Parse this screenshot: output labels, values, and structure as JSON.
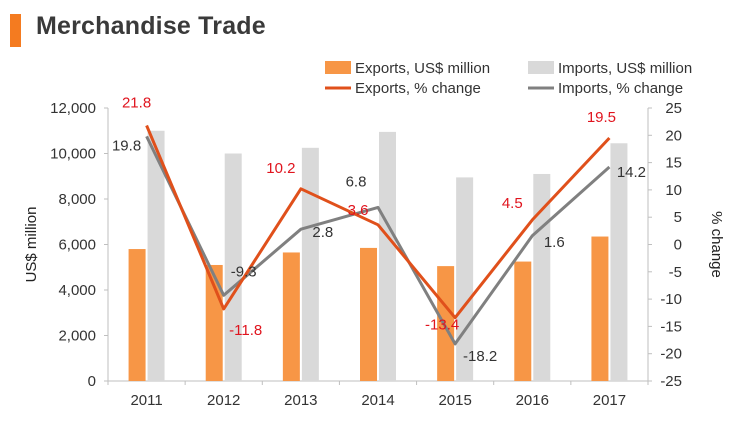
{
  "title": "Merchandise Trade",
  "colors": {
    "accent": "#f47b20",
    "exports_bar": "#f79646",
    "imports_bar": "#d9d9d9",
    "exports_line": "#e0501b",
    "imports_line": "#808080",
    "exports_label": "#e0141e",
    "imports_label": "#333333",
    "axis": "#bfbfbf"
  },
  "chart_data": {
    "type": "bar+line",
    "title": "Merchandise Trade",
    "categories": [
      "2011",
      "2012",
      "2013",
      "2014",
      "2015",
      "2016",
      "2017"
    ],
    "ylabel": "US$ million",
    "y2label": "% change",
    "ylim": [
      0,
      12000
    ],
    "yticks": [
      0,
      2000,
      4000,
      6000,
      8000,
      10000,
      12000
    ],
    "ytick_labels": [
      "0",
      "2,000",
      "4,000",
      "6,000",
      "8,000",
      "10,000",
      "12,000"
    ],
    "y2lim": [
      -25,
      25
    ],
    "y2ticks": [
      25,
      20,
      15,
      10,
      5,
      0,
      -5,
      -10,
      -15,
      -20,
      -25
    ],
    "y2tick_labels": [
      "25",
      "20",
      "15",
      "10",
      "5",
      "0",
      "-5",
      "-10",
      "-15",
      "-20",
      "-25"
    ],
    "bar_series": [
      {
        "name": "Exports, US$ million",
        "values": [
          5800,
          5100,
          5650,
          5850,
          5050,
          5250,
          6350
        ]
      },
      {
        "name": "Imports, US$ million",
        "values": [
          11000,
          10000,
          10250,
          10950,
          8950,
          9100,
          10450
        ]
      }
    ],
    "line_series": [
      {
        "name": "Exports, % change",
        "values": [
          21.8,
          -11.8,
          10.2,
          3.6,
          -13.4,
          4.5,
          19.5
        ],
        "labels": [
          "21.8",
          "-11.8",
          "10.2",
          "3.6",
          "-13.4",
          "4.5",
          "19.5"
        ]
      },
      {
        "name": "Imports, % change",
        "values": [
          19.8,
          -9.3,
          2.8,
          6.8,
          -18.2,
          1.6,
          14.2
        ],
        "labels": [
          "19.8",
          "-9.3",
          "2.8",
          "6.8",
          "-18.2",
          "1.6",
          "14.2"
        ]
      }
    ],
    "legend": [
      "Exports, US$ million",
      "Imports, US$ million",
      "Exports, % change",
      "Imports, % change"
    ],
    "legend_position": "top-right",
    "grid": false
  }
}
